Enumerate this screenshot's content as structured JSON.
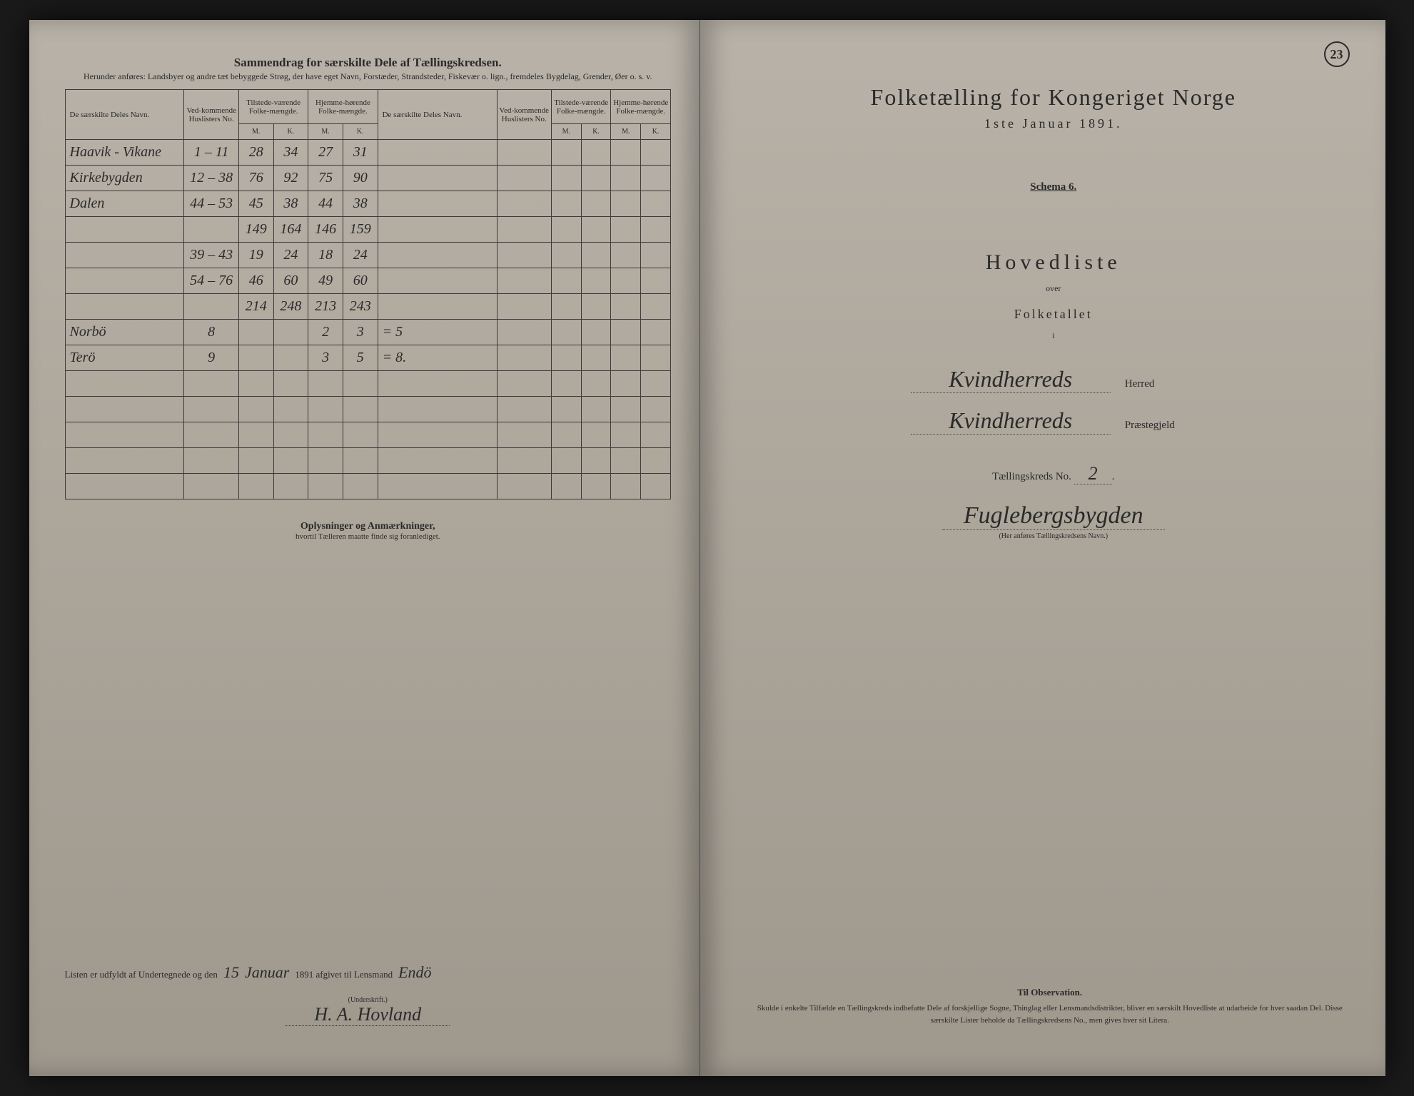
{
  "left": {
    "header_title": "Sammendrag for særskilte Dele af Tællingskredsen.",
    "header_subtitle": "Herunder anføres: Landsbyer og andre tæt bebyggede Strøg, der have eget Navn, Forstæder, Strandsteder, Fiskevær o. lign., fremdeles Bygdelag, Grender, Øer o. s. v.",
    "columns": {
      "name": "De særskilte Deles Navn.",
      "huslister": "Ved-kommende Huslisters No.",
      "tilstede": "Tilstede-værende Folke-mængde.",
      "hjemme": "Hjemme-hørende Folke-mængde.",
      "m": "M.",
      "k": "K."
    },
    "rows": [
      {
        "name": "Haavik - Vikane",
        "hus": "1 – 11",
        "tm": "28",
        "tk": "34",
        "hm": "27",
        "hk": "31"
      },
      {
        "name": "Kirkebygden",
        "hus": "12 – 38",
        "tm": "76",
        "tk": "92",
        "hm": "75",
        "hk": "90"
      },
      {
        "name": "Dalen",
        "hus": "44 – 53",
        "tm": "45",
        "tk": "38",
        "hm": "44",
        "hk": "38"
      },
      {
        "name": "",
        "hus": "",
        "tm": "149",
        "tk": "164",
        "hm": "146",
        "hk": "159"
      },
      {
        "name": "",
        "hus": "39 – 43",
        "tm": "19",
        "tk": "24",
        "hm": "18",
        "hk": "24"
      },
      {
        "name": "",
        "hus": "54 – 76",
        "tm": "46",
        "tk": "60",
        "hm": "49",
        "hk": "60"
      },
      {
        "name": "",
        "hus": "",
        "tm": "214",
        "tk": "248",
        "hm": "213",
        "hk": "243"
      },
      {
        "name": "Norbö",
        "hus": "8",
        "tm": "",
        "tk": "",
        "hm": "2",
        "hk": "3",
        "extra": "= 5"
      },
      {
        "name": "Terö",
        "hus": "9",
        "tm": "",
        "tk": "",
        "hm": "3",
        "hk": "5",
        "extra": "= 8."
      }
    ],
    "notes_title": "Oplysninger og Anmærkninger,",
    "notes_sub": "hvortil Tælleren maatte finde sig foranlediget.",
    "sig_prefix": "Listen er udfyldt af Undertegnede og den",
    "sig_day": "15",
    "sig_month": "Januar",
    "sig_year": "1891 afgivet til Lensmand",
    "sig_lensmand": "Endö",
    "sig_label": "(Underskrift.)",
    "sig_name": "H. A. Hovland"
  },
  "right": {
    "page_number": "23",
    "main_title": "Folketælling for Kongeriget Norge",
    "date": "1ste Januar 1891.",
    "schema": "Schema 6.",
    "hovedliste": "Hovedliste",
    "over": "over",
    "folketallet": "Folketallet",
    "i": "i",
    "herred_value": "Kvindherreds",
    "herred_label": "Herred",
    "prastegjeld_value": "Kvindherreds",
    "prastegjeld_label": "Præstegjeld",
    "kreds_label": "Tællingskreds No.",
    "kreds_no": "2",
    "kreds_name": "Fuglebergsbygden",
    "kreds_hint": "(Her anføres Tællingskredsens Navn.)",
    "obs_title": "Til Observation.",
    "obs_text": "Skulde i enkelte Tilfælde en Tællingskreds indbefatte Dele af forskjellige Sogne, Thinglag eller Lensmandsdistrikter, bliver en særskilt Hovedliste at udarbeide for hver saadan Del. Disse særskilte Lister beholde da Tællingskredsens No., men gives hver sit Litera."
  },
  "colors": {
    "page_bg": "#aba59a",
    "text": "#2a2a2a",
    "border": "#3a3a3a"
  }
}
